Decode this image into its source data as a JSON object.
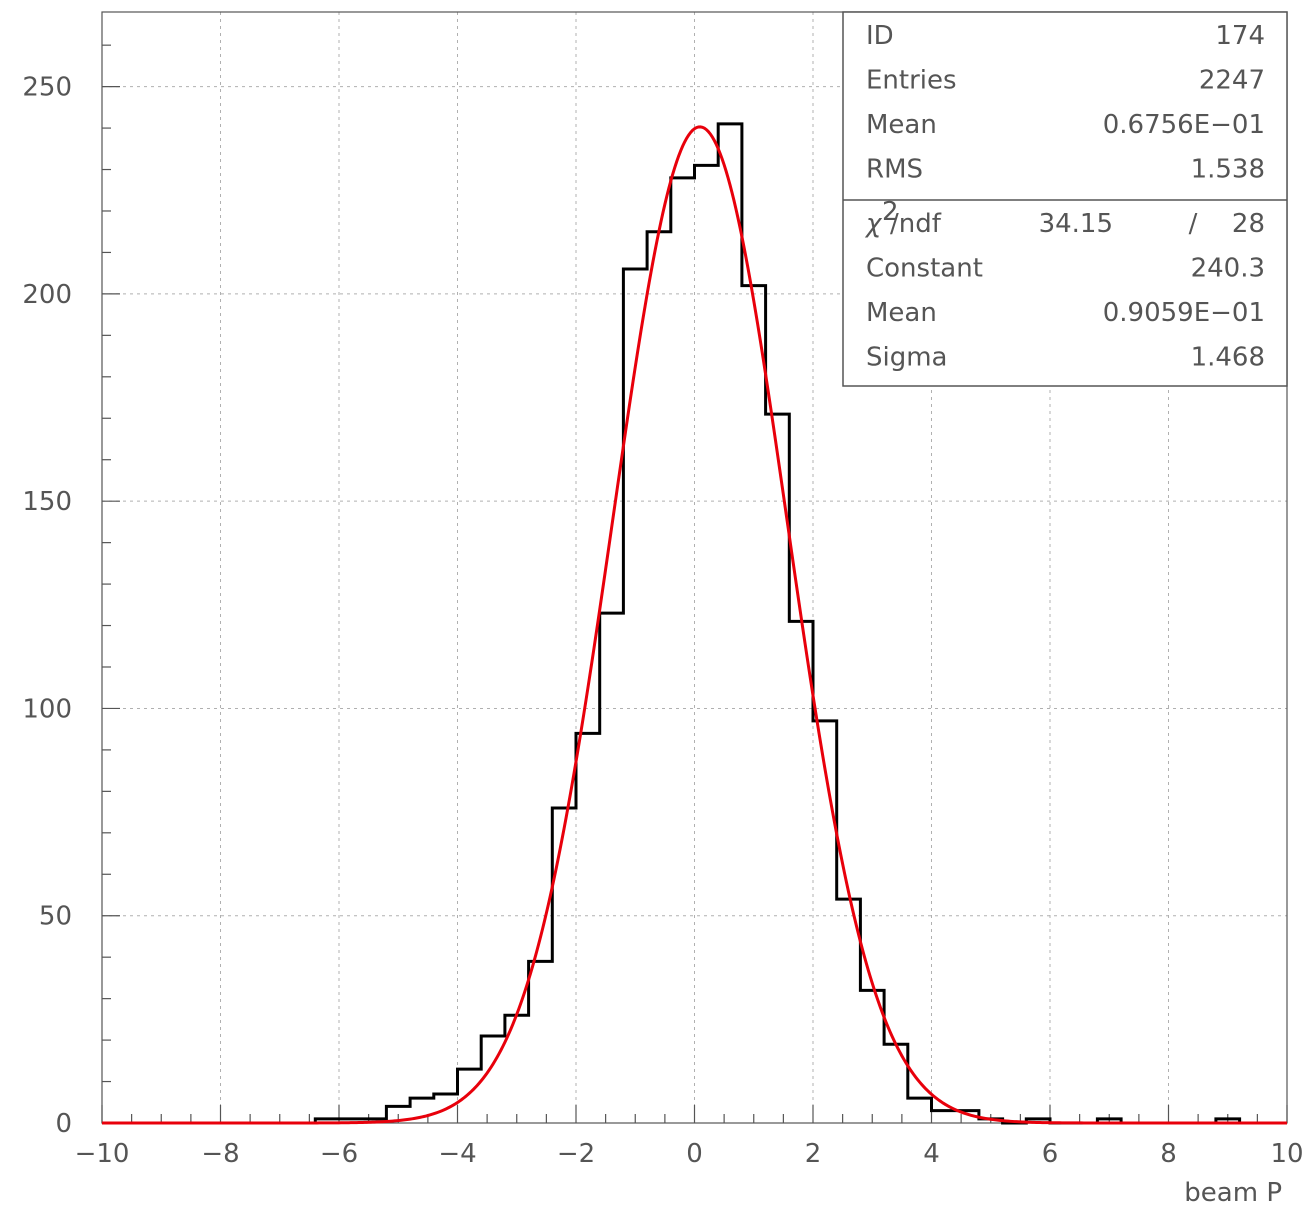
{
  "chart_data": {
    "type": "bar",
    "xlabel": "beam P",
    "ylabel": "",
    "title": "",
    "xlim": [
      -10,
      10
    ],
    "ylim": [
      0,
      268
    ],
    "grid": true,
    "x_ticks": [
      "−10",
      "−8",
      "−6",
      "−4",
      "−2",
      "0",
      "2",
      "4",
      "6",
      "8",
      "10"
    ],
    "y_ticks": [
      "0",
      "50",
      "100",
      "150",
      "200",
      "250"
    ],
    "bin_width": 0.4,
    "bins": [
      {
        "x": -6.4,
        "value": 1
      },
      {
        "x": -6.0,
        "value": 1
      },
      {
        "x": -5.6,
        "value": 1
      },
      {
        "x": -5.2,
        "value": 4
      },
      {
        "x": -4.8,
        "value": 6
      },
      {
        "x": -4.4,
        "value": 7
      },
      {
        "x": -4.0,
        "value": 13
      },
      {
        "x": -3.6,
        "value": 21
      },
      {
        "x": -3.2,
        "value": 26
      },
      {
        "x": -2.8,
        "value": 39
      },
      {
        "x": -2.4,
        "value": 76
      },
      {
        "x": -2.0,
        "value": 94
      },
      {
        "x": -1.6,
        "value": 123
      },
      {
        "x": -1.2,
        "value": 206
      },
      {
        "x": -0.8,
        "value": 215
      },
      {
        "x": -0.4,
        "value": 228
      },
      {
        "x": 0.0,
        "value": 231
      },
      {
        "x": 0.4,
        "value": 241
      },
      {
        "x": 0.8,
        "value": 202
      },
      {
        "x": 1.2,
        "value": 171
      },
      {
        "x": 1.6,
        "value": 121
      },
      {
        "x": 2.0,
        "value": 97
      },
      {
        "x": 2.4,
        "value": 54
      },
      {
        "x": 2.8,
        "value": 32
      },
      {
        "x": 3.2,
        "value": 19
      },
      {
        "x": 3.6,
        "value": 6
      },
      {
        "x": 4.0,
        "value": 3
      },
      {
        "x": 4.4,
        "value": 3
      },
      {
        "x": 4.8,
        "value": 1
      },
      {
        "x": 5.2,
        "value": 0
      },
      {
        "x": 5.6,
        "value": 1
      },
      {
        "x": 6.8,
        "value": 1
      },
      {
        "x": 8.8,
        "value": 1
      }
    ],
    "fit": {
      "type": "gaussian",
      "constant": 240.3,
      "mean": 0.09059,
      "sigma": 1.468,
      "color": "#e8000b"
    },
    "stats_box": {
      "rows": [
        {
          "label": "ID",
          "value": "174"
        },
        {
          "label": "Entries",
          "value": "2247"
        },
        {
          "label": "Mean",
          "value": "0.6756E−01"
        },
        {
          "label": "RMS",
          "value": "1.538"
        }
      ],
      "chi2": {
        "symbol": "χ",
        "exponent": "2",
        "label": "/ndf",
        "value": "34.15",
        "sep": "/",
        "ndf": "28"
      },
      "fit_rows": [
        {
          "label": "Constant",
          "value": "240.3"
        },
        {
          "label": "Mean",
          "value": "0.9059E−01"
        },
        {
          "label": "Sigma",
          "value": "1.468"
        }
      ]
    },
    "colors": {
      "histogram": "#000000",
      "fit": "#e8000b",
      "grid": "#b0b0b0",
      "axis": "#555555"
    }
  }
}
